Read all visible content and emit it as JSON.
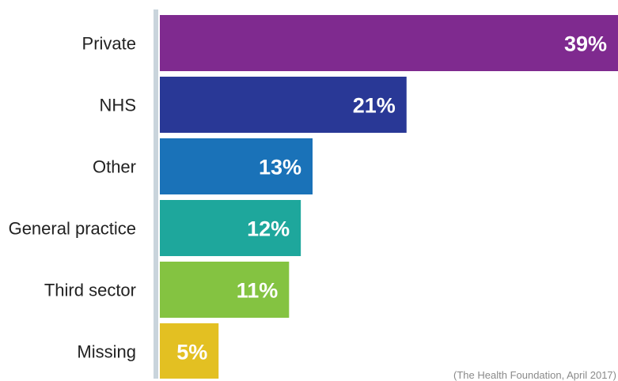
{
  "chart_data": {
    "type": "bar",
    "orientation": "horizontal",
    "categories": [
      "Private",
      "NHS",
      "Other",
      "General practice",
      "Third sector",
      "Missing"
    ],
    "values": [
      39,
      21,
      13,
      12,
      11,
      5
    ],
    "value_labels": [
      "39%",
      "21%",
      "13%",
      "12%",
      "11%",
      "5%"
    ],
    "colors": [
      "#7f2a8f",
      "#293896",
      "#1a72b8",
      "#1ea79c",
      "#84c341",
      "#e3c022"
    ],
    "axis_color": "#c9d4dc",
    "xlim": [
      0,
      39
    ],
    "grid": false,
    "legend": "none"
  },
  "source_note": "(The Health Foundation, April 2017)"
}
